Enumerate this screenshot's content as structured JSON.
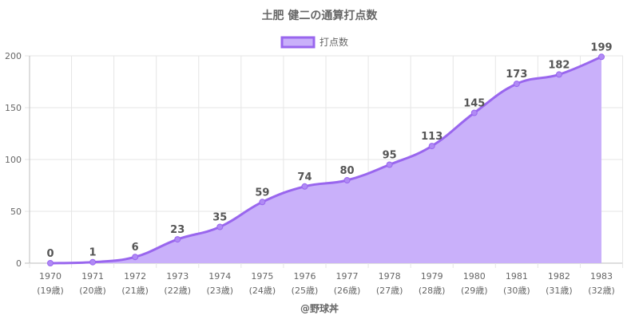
{
  "chart_data": {
    "type": "area",
    "title": "土肥 健二の通算打点数",
    "legend": {
      "label": "打点数",
      "position": "top"
    },
    "categories": [
      [
        "1970",
        "(19歳)"
      ],
      [
        "1971",
        "(20歳)"
      ],
      [
        "1972",
        "(21歳)"
      ],
      [
        "1973",
        "(22歳)"
      ],
      [
        "1974",
        "(23歳)"
      ],
      [
        "1975",
        "(24歳)"
      ],
      [
        "1976",
        "(25歳)"
      ],
      [
        "1977",
        "(26歳)"
      ],
      [
        "1978",
        "(27歳)"
      ],
      [
        "1979",
        "(28歳)"
      ],
      [
        "1980",
        "(29歳)"
      ],
      [
        "1981",
        "(30歳)"
      ],
      [
        "1982",
        "(31歳)"
      ],
      [
        "1983",
        "(32歳)"
      ]
    ],
    "series": [
      {
        "name": "打点数",
        "values": [
          0,
          1,
          6,
          23,
          35,
          59,
          74,
          80,
          95,
          113,
          145,
          173,
          182,
          199
        ]
      }
    ],
    "ylim": [
      0,
      200
    ],
    "yticks": [
      0,
      50,
      100,
      150,
      200
    ],
    "grid": true,
    "colors": {
      "line": "#9966ee",
      "fill": "#c9b0fa",
      "point": "#b08af5"
    }
  },
  "footer": {
    "credit": "@野球丼"
  }
}
